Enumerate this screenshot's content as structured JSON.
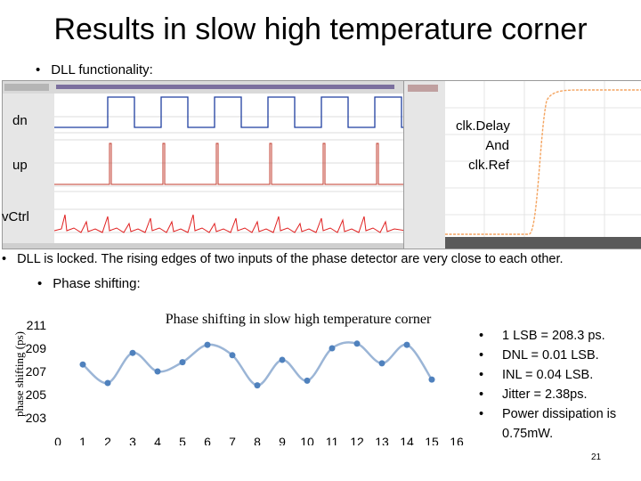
{
  "slide": {
    "title": "Results in slow high temperature corner",
    "bullet_dll": "DLL functionality:",
    "label_dn": "dn",
    "label_up": "up",
    "label_vctrl": "vCtrl",
    "label_clk": [
      "clk.Delay",
      "And",
      "clk.Ref"
    ],
    "locked_text": "DLL is locked. The rising edges of two inputs of  the phase detector are very close to each other.",
    "bullet_phase": "Phase shifting:",
    "page_number": "21"
  },
  "stats": [
    "1 LSB = 208.3 ps.",
    "DNL = 0.01 LSB.",
    "INL = 0.04 LSB.",
    "Jitter =  2.38ps.",
    "Power dissipation is 0.75mW."
  ],
  "colors": {
    "chart_line": "#9bb5d6",
    "chart_marker": "#4f81bd",
    "dn_trace": "#1f3fa0",
    "up_trace": "#c0392b",
    "vctrl_trace": "#e02020",
    "clk_trace": "#f4a460"
  },
  "chart_data": {
    "type": "line",
    "title": "Phase shifting in slow high temperature corner",
    "ylabel": "phase shifting (ps)",
    "xlabel": "",
    "x": [
      0,
      1,
      2,
      3,
      4,
      5,
      6,
      7,
      8,
      9,
      10,
      11,
      12,
      13,
      14,
      15,
      16
    ],
    "y_ticks": [
      203,
      205,
      207,
      209,
      211
    ],
    "ylim": [
      202,
      212
    ],
    "series": [
      {
        "x": [
          1,
          2,
          3,
          4,
          5,
          6,
          7,
          8,
          9,
          10,
          11,
          12,
          13,
          14,
          15
        ],
        "values": [
          207.6,
          206.0,
          208.6,
          207.0,
          207.8,
          209.3,
          208.4,
          205.8,
          208.0,
          206.2,
          209.0,
          209.4,
          207.7,
          209.3,
          206.3
        ]
      }
    ],
    "grid": false,
    "legend": "none"
  }
}
